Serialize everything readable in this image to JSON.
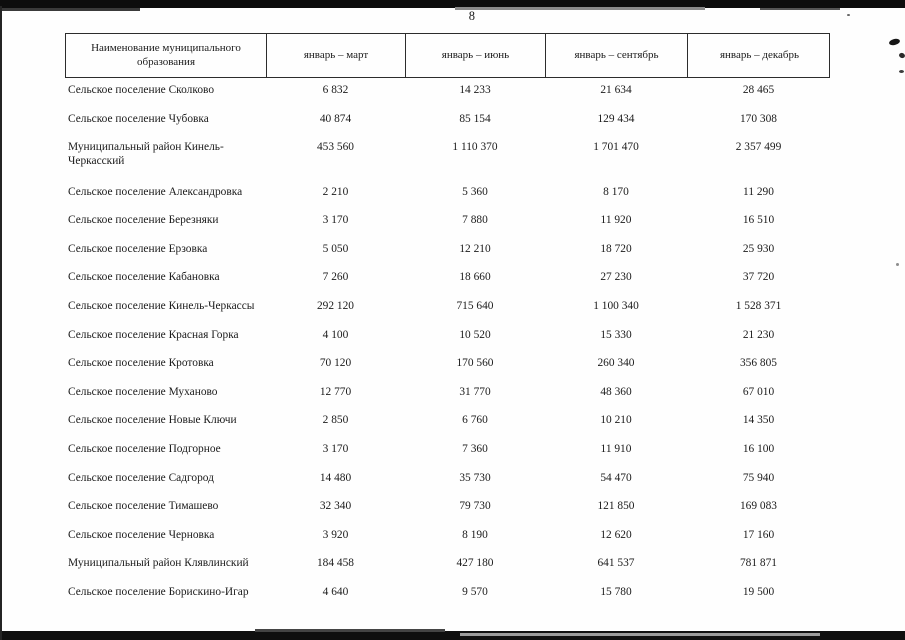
{
  "page": {
    "number": "8"
  },
  "table": {
    "columns": [
      "Наименование муниципального образования",
      "январь – март",
      "январь – июнь",
      "январь – сентябрь",
      "январь – декабрь"
    ],
    "rows": [
      {
        "name": "Сельское поселение Сколково",
        "two_line": false,
        "values": [
          "6 832",
          "14 233",
          "21 634",
          "28 465"
        ]
      },
      {
        "name": "Сельское поселение Чубовка",
        "two_line": false,
        "values": [
          "40 874",
          "85 154",
          "129 434",
          "170 308"
        ]
      },
      {
        "name": "Муниципальный район Кинель-Черкасский",
        "two_line": true,
        "values": [
          "453 560",
          "1 110 370",
          "1 701 470",
          "2 357 499"
        ]
      },
      {
        "name": "Сельское поселение Александровка",
        "two_line": false,
        "values": [
          "2 210",
          "5 360",
          "8 170",
          "11 290"
        ]
      },
      {
        "name": "Сельское поселение Березняки",
        "two_line": false,
        "values": [
          "3 170",
          "7 880",
          "11 920",
          "16 510"
        ]
      },
      {
        "name": "Сельское поселение Ерзовка",
        "two_line": false,
        "values": [
          "5 050",
          "12 210",
          "18 720",
          "25 930"
        ]
      },
      {
        "name": "Сельское поселение Кабановка",
        "two_line": false,
        "values": [
          "7 260",
          "18 660",
          "27 230",
          "37 720"
        ]
      },
      {
        "name": "Сельское поселение Кинель-Черкассы",
        "two_line": false,
        "values": [
          "292 120",
          "715 640",
          "1 100 340",
          "1 528 371"
        ]
      },
      {
        "name": "Сельское поселение Красная Горка",
        "two_line": false,
        "values": [
          "4 100",
          "10 520",
          "15 330",
          "21 230"
        ]
      },
      {
        "name": "Сельское поселение Кротовка",
        "two_line": false,
        "values": [
          "70 120",
          "170 560",
          "260 340",
          "356 805"
        ]
      },
      {
        "name": "Сельское поселение Муханово",
        "two_line": false,
        "values": [
          "12 770",
          "31 770",
          "48 360",
          "67 010"
        ]
      },
      {
        "name": "Сельское поселение Новые Ключи",
        "two_line": false,
        "values": [
          "2 850",
          "6 760",
          "10 210",
          "14 350"
        ]
      },
      {
        "name": "Сельское поселение Подгорное",
        "two_line": false,
        "values": [
          "3 170",
          "7 360",
          "11 910",
          "16 100"
        ]
      },
      {
        "name": "Сельское поселение Садгород",
        "two_line": false,
        "values": [
          "14 480",
          "35 730",
          "54 470",
          "75 940"
        ]
      },
      {
        "name": "Сельское поселение Тимашево",
        "two_line": false,
        "values": [
          "32 340",
          "79 730",
          "121 850",
          "169 083"
        ]
      },
      {
        "name": "Сельское поселение Черновка",
        "two_line": false,
        "values": [
          "3 920",
          "8 190",
          "12 620",
          "17 160"
        ]
      },
      {
        "name": "Муниципальный район Клявлинский",
        "two_line": false,
        "values": [
          "184 458",
          "427 180",
          "641 537",
          "781 871"
        ]
      },
      {
        "name": "Сельское поселение Борискино-Игар",
        "two_line": false,
        "values": [
          "4 640",
          "9 570",
          "15 780",
          "19 500"
        ]
      }
    ]
  }
}
